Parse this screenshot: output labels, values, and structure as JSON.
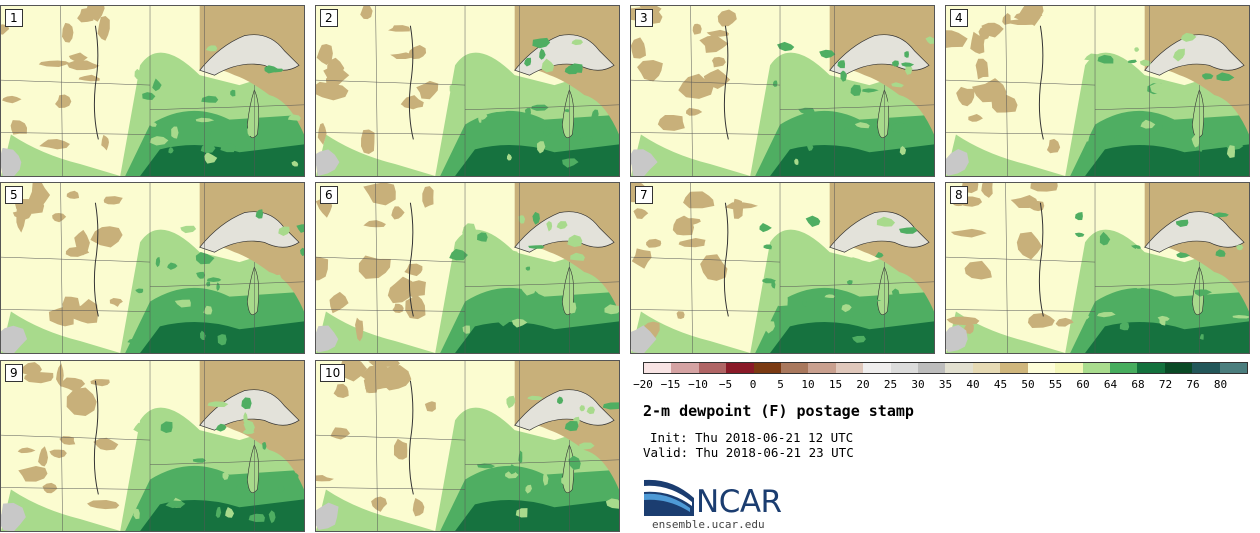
{
  "panels": [
    {
      "label": "1"
    },
    {
      "label": "2"
    },
    {
      "label": "3"
    },
    {
      "label": "4"
    },
    {
      "label": "5"
    },
    {
      "label": "6"
    },
    {
      "label": "7"
    },
    {
      "label": "8"
    },
    {
      "label": "9"
    },
    {
      "label": "10"
    }
  ],
  "colorbar": {
    "colors": [
      "#f8e4e4",
      "#d5a3a3",
      "#b06565",
      "#8a1a28",
      "#7b3a12",
      "#a9785d",
      "#c9a08f",
      "#e0c8bc",
      "#f0eeee",
      "#dcdcdc",
      "#bdbdbd",
      "#e2e0d0",
      "#e6dab4",
      "#cfb67c",
      "#fdfdd8",
      "#f4f7b9",
      "#a9dc8e",
      "#47ad5e",
      "#13713d",
      "#0a4a26",
      "#23575a",
      "#4b7e7e"
    ],
    "ticks": [
      "−20",
      "−15",
      "−10",
      "−5",
      "0",
      "5",
      "10",
      "15",
      "20",
      "25",
      "30",
      "35",
      "40",
      "45",
      "50",
      "55",
      "60",
      "64",
      "68",
      "72",
      "76",
      "80"
    ]
  },
  "title": "2-m dewpoint (F) postage stamp",
  "init": "Init: Thu 2018-06-21 12 UTC",
  "valid": "Valid: Thu 2018-06-21 23 UTC",
  "logo": {
    "text": "NCAR",
    "color": "#1b3d70",
    "accent": "#1e6fb3"
  },
  "site": "ensemble.ucar.edu",
  "map_colors": {
    "dry": "#c8b07a",
    "pale": "#fbfcd0",
    "light_green": "#a8da8c",
    "mid_green": "#4fae62",
    "dark_green": "#16723f",
    "lake": "#e3e2da",
    "gray": "#c8c8c8"
  }
}
